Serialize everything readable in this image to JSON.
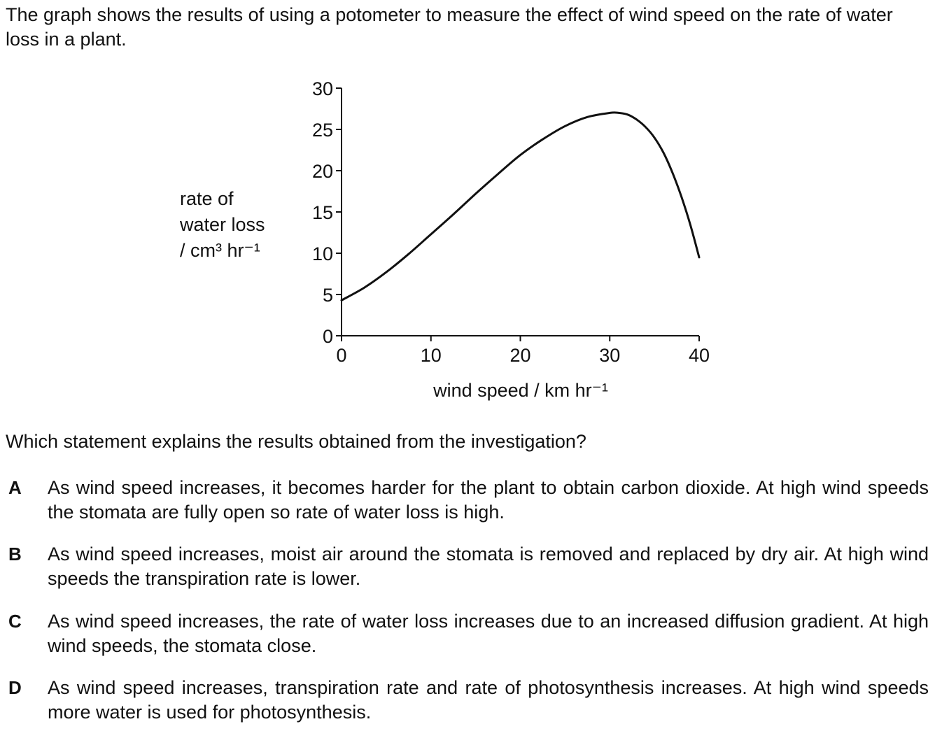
{
  "intro": "The graph shows the results of using a potometer to measure the effect of wind speed on the rate of water loss in a plant.",
  "chart_data": {
    "type": "line",
    "title": "",
    "ylabel_lines": [
      "rate of",
      "water loss",
      "/ cm³ hr⁻¹"
    ],
    "xlabel": "wind speed / km hr⁻¹",
    "xlim": [
      0,
      40
    ],
    "ylim": [
      0,
      30
    ],
    "x_ticks": [
      0,
      10,
      20,
      30,
      40
    ],
    "y_ticks": [
      0,
      5,
      10,
      15,
      20,
      25,
      30
    ],
    "grid": false,
    "series": [
      {
        "x": [
          0,
          2.5,
          5,
          7.5,
          10,
          12.5,
          15,
          17.5,
          20,
          22.5,
          25,
          27.5,
          30,
          31,
          32,
          33,
          34,
          35,
          36,
          37,
          38,
          39,
          40
        ],
        "y": [
          4.3,
          5.8,
          7.7,
          9.9,
          12.3,
          14.7,
          17.2,
          19.6,
          21.9,
          23.8,
          25.4,
          26.5,
          27.0,
          27.0,
          26.8,
          26.2,
          25.3,
          24.0,
          22.2,
          19.8,
          16.9,
          13.5,
          9.5
        ]
      }
    ]
  },
  "question": "Which statement explains the results obtained from the investigation?",
  "options": [
    {
      "letter": "A",
      "text": "As wind speed increases, it becomes harder for the plant to obtain carbon dioxide. At high wind speeds the stomata are fully open so rate of water loss is high."
    },
    {
      "letter": "B",
      "text": "As wind speed increases, moist air around the stomata is removed and replaced by dry air. At high wind speeds the transpiration rate is lower."
    },
    {
      "letter": "C",
      "text": "As wind speed increases, the rate of water loss increases due to an increased diffusion gradient. At high wind speeds, the stomata close."
    },
    {
      "letter": "D",
      "text": "As wind speed increases, transpiration rate and rate of photosynthesis increases. At high wind speeds more water is used for photosynthesis."
    }
  ]
}
